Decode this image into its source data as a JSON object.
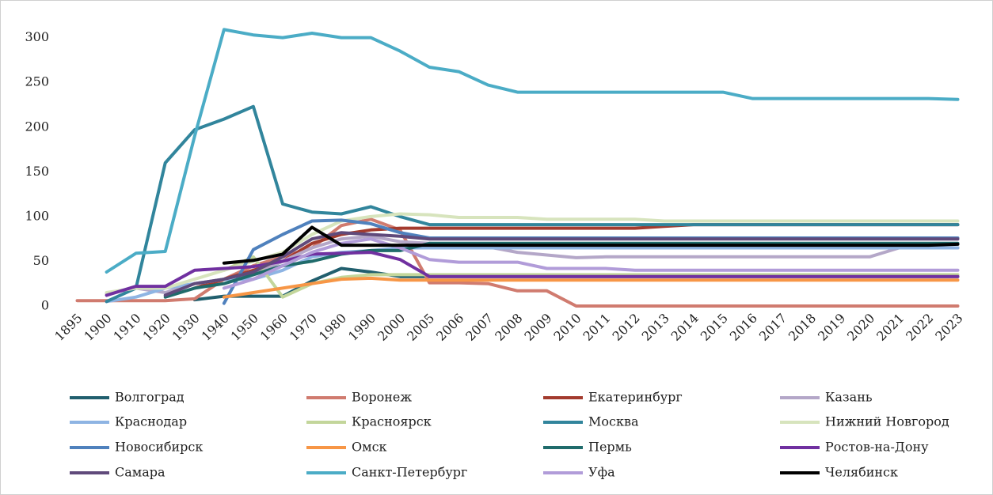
{
  "chart_data": {
    "type": "line",
    "categories": [
      "1895",
      "1900",
      "1910",
      "1920",
      "1930",
      "1940",
      "1950",
      "1960",
      "1970",
      "1980",
      "1990",
      "2000",
      "2005",
      "2006",
      "2007",
      "2008",
      "2009",
      "2010",
      "2011",
      "2012",
      "2013",
      "2014",
      "2015",
      "2016",
      "2017",
      "2018",
      "2019",
      "2020",
      "2021",
      "2022",
      "2023"
    ],
    "ylim": [
      0,
      320
    ],
    "yticks": [
      0,
      50,
      100,
      150,
      200,
      250,
      300
    ],
    "grid": false,
    "legend": "bottom",
    "series": [
      {
        "name": "Волгоград",
        "color": "#215f6e",
        "values": [
          null,
          null,
          null,
          null,
          7,
          11,
          11,
          11,
          28,
          42,
          38,
          33,
          33,
          33,
          33,
          33,
          33,
          33,
          33,
          33,
          33,
          33,
          33,
          33,
          33,
          33,
          33,
          33,
          33,
          33,
          33
        ]
      },
      {
        "name": "Воронеж",
        "color": "#d07b6f",
        "values": [
          6,
          6,
          6,
          6,
          8,
          30,
          45,
          55,
          65,
          90,
          97,
          85,
          26,
          26,
          25,
          17,
          17,
          0,
          0,
          0,
          0,
          0,
          0,
          0,
          0,
          0,
          0,
          0,
          0,
          0,
          0
        ]
      },
      {
        "name": "Екатеринбург",
        "color": "#a33b2e",
        "values": [
          null,
          null,
          null,
          null,
          20,
          30,
          40,
          50,
          70,
          80,
          85,
          87,
          87,
          87,
          87,
          87,
          87,
          87,
          87,
          87,
          89,
          91,
          91,
          91,
          91,
          91,
          91,
          91,
          91,
          91,
          91
        ]
      },
      {
        "name": "Казань",
        "color": "#b4a7c8",
        "values": [
          null,
          14,
          20,
          15,
          25,
          30,
          35,
          50,
          65,
          75,
          78,
          72,
          70,
          68,
          66,
          60,
          57,
          54,
          55,
          55,
          55,
          55,
          55,
          55,
          55,
          55,
          55,
          55,
          65,
          65,
          65
        ]
      },
      {
        "name": "Краснодар",
        "color": "#8eb4e3",
        "values": [
          null,
          5,
          10,
          20,
          25,
          30,
          30,
          40,
          55,
          60,
          62,
          65,
          65,
          65,
          65,
          65,
          65,
          65,
          65,
          65,
          65,
          65,
          65,
          65,
          65,
          65,
          65,
          65,
          65,
          65,
          65
        ]
      },
      {
        "name": "Красноярск",
        "color": "#c3d69b",
        "values": [
          null,
          null,
          null,
          null,
          null,
          40,
          55,
          10,
          25,
          32,
          35,
          35,
          35,
          35,
          35,
          35,
          35,
          35,
          35,
          35,
          35,
          35,
          35,
          35,
          35,
          35,
          35,
          35,
          35,
          35,
          35
        ]
      },
      {
        "name": "Москва",
        "color": "#31859c",
        "values": [
          null,
          5,
          20,
          160,
          197,
          209,
          223,
          114,
          105,
          103,
          111,
          100,
          91,
          91,
          91,
          91,
          91,
          91,
          91,
          91,
          91,
          91,
          91,
          91,
          91,
          91,
          91,
          91,
          91,
          91,
          91
        ]
      },
      {
        "name": "Нижний Новгород",
        "color": "#d7e4bd",
        "values": [
          null,
          15,
          20,
          20,
          30,
          40,
          50,
          60,
          80,
          95,
          100,
          103,
          102,
          99,
          99,
          99,
          97,
          97,
          97,
          97,
          95,
          95,
          95,
          95,
          95,
          95,
          95,
          95,
          95,
          95,
          95
        ]
      },
      {
        "name": "Новосибирск",
        "color": "#4f81bd",
        "values": [
          null,
          null,
          null,
          null,
          null,
          3,
          63,
          80,
          95,
          96,
          92,
          82,
          76,
          76,
          76,
          76,
          76,
          76,
          76,
          76,
          76,
          76,
          76,
          76,
          76,
          76,
          76,
          76,
          76,
          76,
          76
        ]
      },
      {
        "name": "Омск",
        "color": "#f79646",
        "values": [
          null,
          null,
          null,
          null,
          null,
          10,
          15,
          20,
          25,
          30,
          31,
          29,
          29,
          29,
          29,
          29,
          29,
          29,
          29,
          29,
          29,
          29,
          29,
          29,
          29,
          29,
          29,
          29,
          29,
          29,
          29
        ]
      },
      {
        "name": "Пермь",
        "color": "#1f6b6b",
        "values": [
          null,
          null,
          null,
          10,
          20,
          25,
          35,
          45,
          50,
          58,
          62,
          62,
          70,
          70,
          70,
          70,
          70,
          70,
          70,
          70,
          70,
          70,
          70,
          70,
          70,
          70,
          70,
          70,
          70,
          70,
          70
        ]
      },
      {
        "name": "Ростов-на-Дону",
        "color": "#7030a0",
        "values": [
          null,
          12,
          22,
          22,
          40,
          42,
          44,
          50,
          58,
          59,
          60,
          52,
          33,
          33,
          33,
          33,
          33,
          33,
          33,
          33,
          33,
          33,
          33,
          33,
          33,
          33,
          33,
          33,
          33,
          33,
          33
        ]
      },
      {
        "name": "Самара",
        "color": "#604a7b",
        "values": [
          null,
          null,
          null,
          12,
          25,
          30,
          38,
          55,
          75,
          82,
          80,
          78,
          75,
          75,
          75,
          75,
          75,
          75,
          75,
          75,
          75,
          75,
          75,
          75,
          75,
          75,
          75,
          75,
          75,
          75,
          75
        ]
      },
      {
        "name": "Санкт-Петербург",
        "color": "#4bacc6",
        "values": [
          null,
          38,
          59,
          61,
          190,
          309,
          303,
          300,
          305,
          300,
          300,
          285,
          267,
          262,
          247,
          239,
          239,
          239,
          239,
          239,
          239,
          239,
          239,
          232,
          232,
          232,
          232,
          232,
          232,
          232,
          231
        ]
      },
      {
        "name": "Уфа",
        "color": "#b19cd9",
        "values": [
          null,
          null,
          null,
          null,
          null,
          20,
          30,
          45,
          60,
          70,
          75,
          65,
          52,
          49,
          49,
          49,
          42,
          42,
          42,
          40,
          40,
          40,
          40,
          40,
          40,
          40,
          40,
          40,
          40,
          40,
          40
        ]
      },
      {
        "name": "Челябинск",
        "color": "#000000",
        "values": [
          null,
          null,
          null,
          null,
          null,
          48,
          51,
          58,
          88,
          68,
          68,
          68,
          68,
          68,
          68,
          68,
          68,
          68,
          68,
          68,
          68,
          68,
          68,
          68,
          68,
          68,
          68,
          68,
          68,
          68,
          69
        ]
      }
    ]
  }
}
